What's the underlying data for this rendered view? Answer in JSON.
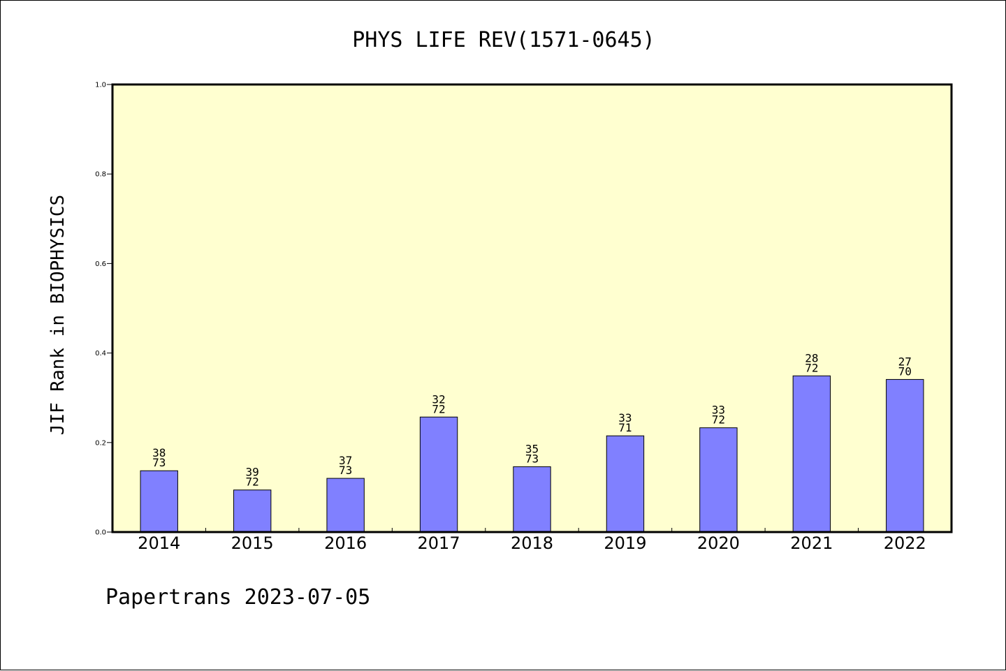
{
  "chart_data": {
    "type": "bar",
    "title": "PHYS LIFE REV(1571-0645)",
    "ylabel": "JIF Rank in BIOPHYSICS",
    "xlabel": "",
    "ylim": [
      0.0,
      1.0
    ],
    "yticks": [
      "0.0",
      "0.2",
      "0.4",
      "0.6",
      "0.8",
      "1.0"
    ],
    "categories": [
      "2014",
      "2015",
      "2016",
      "2017",
      "2018",
      "2019",
      "2020",
      "2021",
      "2022"
    ],
    "values": [
      0.137,
      0.094,
      0.12,
      0.257,
      0.146,
      0.215,
      0.233,
      0.349,
      0.341
    ],
    "rank_labels": [
      "38",
      "39",
      "37",
      "32",
      "35",
      "33",
      "33",
      "28",
      "27"
    ],
    "total_labels": [
      "73",
      "72",
      "73",
      "72",
      "73",
      "71",
      "72",
      "72",
      "70"
    ],
    "grid": false,
    "plot_background": "#ffffd0",
    "bar_color": "#8080ff"
  },
  "footer": "Papertrans 2023-07-05"
}
